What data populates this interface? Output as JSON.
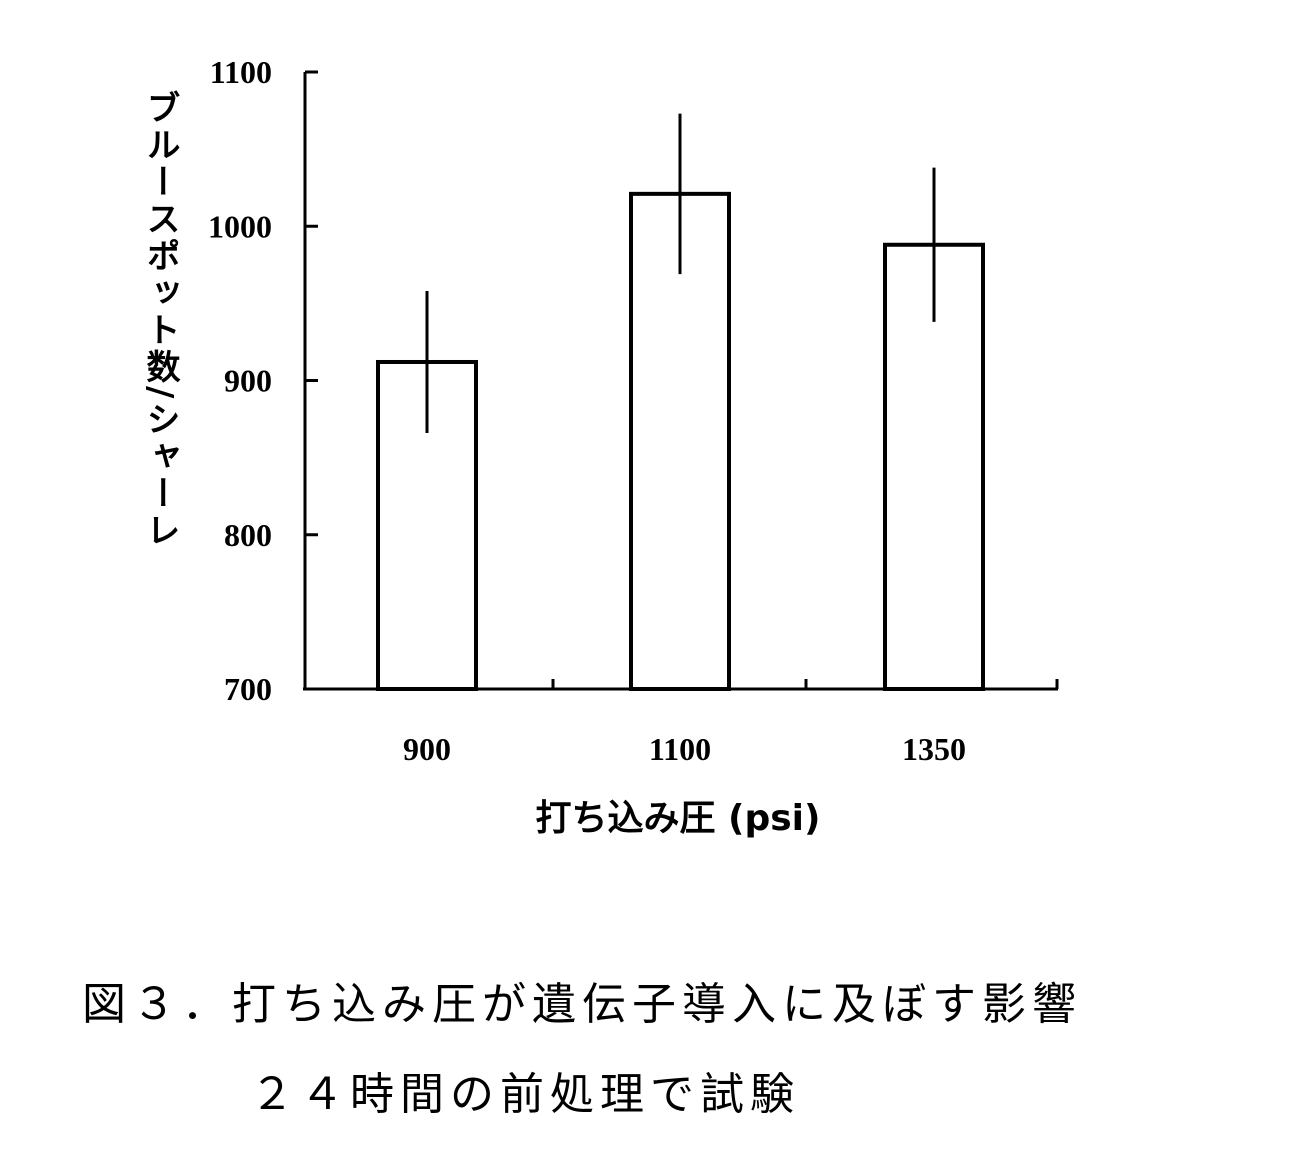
{
  "chart_data": {
    "type": "bar",
    "categories": [
      "900",
      "1100",
      "1350"
    ],
    "values": [
      912,
      1021,
      988
    ],
    "error": [
      46,
      52,
      50
    ],
    "xlabel": "打ち込み圧 (psi)",
    "ylabel": "ブルースポット数/シャーレ",
    "ylim": [
      700,
      1100
    ],
    "yticks": [
      "700",
      "800",
      "900",
      "1000",
      "1100"
    ],
    "grid": false,
    "bar_fill": "#ffffff",
    "bar_stroke": "#000000"
  },
  "caption": {
    "line1": "図３．打ち込み圧が遺伝子導入に及ぼす影響",
    "line2": "２４時間の前処理で試験"
  }
}
